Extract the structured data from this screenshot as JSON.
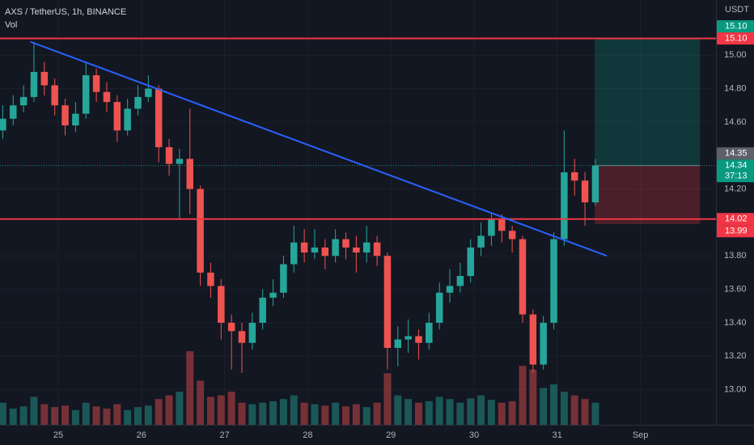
{
  "chart_data": {
    "type": "candlestick",
    "title": "AXS / TetherUS, 1h, BINANCE",
    "subtitle": "Vol",
    "y_axis_label": "USDT",
    "background": "#131722",
    "up_color": "#26a69a",
    "down_color": "#ef5350",
    "grid": true,
    "x": [
      8,
      11,
      14,
      17,
      20,
      23,
      26,
      29,
      32,
      35,
      38,
      41,
      44,
      47,
      50,
      53,
      56,
      59,
      62,
      65,
      68,
      71,
      74,
      77,
      80,
      83,
      86,
      89,
      92,
      95,
      98,
      101,
      104,
      107,
      110,
      113,
      116,
      119,
      122,
      125,
      128,
      131,
      134,
      137,
      140,
      143,
      146,
      149,
      152,
      155,
      158,
      161,
      164,
      167,
      170,
      173,
      176,
      179
    ],
    "open": [
      14.55,
      14.62,
      14.7,
      14.75,
      14.9,
      14.82,
      14.7,
      14.58,
      14.65,
      14.88,
      14.78,
      14.72,
      14.55,
      14.68,
      14.75,
      14.8,
      14.45,
      14.35,
      14.38,
      14.2,
      13.7,
      13.62,
      13.4,
      13.35,
      13.28,
      13.4,
      13.55,
      13.58,
      13.75,
      13.88,
      13.82,
      13.85,
      13.8,
      13.9,
      13.85,
      13.82,
      13.88,
      13.8,
      13.25,
      13.3,
      13.32,
      13.28,
      13.4,
      13.58,
      13.62,
      13.68,
      13.85,
      13.92,
      14.02,
      13.95,
      13.9,
      13.45,
      13.15,
      13.4,
      13.9,
      14.3,
      14.25,
      14.12
    ],
    "high": [
      14.7,
      14.76,
      14.82,
      15.08,
      14.96,
      14.86,
      14.74,
      14.72,
      14.96,
      14.92,
      14.84,
      14.76,
      14.74,
      14.82,
      14.88,
      14.82,
      14.5,
      14.44,
      14.68,
      14.22,
      13.76,
      13.66,
      13.45,
      13.4,
      13.46,
      13.6,
      13.66,
      13.8,
      13.98,
      13.96,
      13.96,
      13.9,
      13.96,
      13.94,
      13.92,
      13.98,
      13.92,
      13.82,
      13.38,
      13.42,
      13.36,
      13.46,
      13.64,
      13.72,
      13.76,
      13.9,
      14.0,
      14.06,
      14.05,
      13.98,
      13.92,
      13.48,
      13.44,
      13.94,
      14.55,
      14.38,
      14.3,
      14.38
    ],
    "low": [
      14.5,
      14.58,
      14.66,
      14.72,
      14.76,
      14.64,
      14.52,
      14.54,
      14.62,
      14.72,
      14.66,
      14.48,
      14.52,
      14.64,
      14.72,
      14.36,
      14.28,
      14.02,
      14.05,
      13.62,
      13.55,
      13.3,
      13.12,
      13.1,
      13.24,
      13.36,
      13.5,
      13.55,
      13.7,
      13.76,
      13.78,
      13.72,
      13.76,
      13.78,
      13.7,
      13.76,
      13.74,
      13.12,
      13.14,
      13.22,
      13.18,
      13.24,
      13.36,
      13.52,
      13.58,
      13.64,
      13.8,
      13.86,
      13.88,
      13.82,
      13.4,
      13.1,
      13.12,
      13.36,
      13.86,
      14.16,
      13.98,
      14.1
    ],
    "close": [
      14.62,
      14.7,
      14.75,
      14.9,
      14.82,
      14.7,
      14.58,
      14.65,
      14.88,
      14.78,
      14.72,
      14.55,
      14.68,
      14.75,
      14.8,
      14.45,
      14.35,
      14.38,
      14.2,
      13.7,
      13.62,
      13.4,
      13.35,
      13.28,
      13.4,
      13.55,
      13.58,
      13.75,
      13.88,
      13.82,
      13.85,
      13.8,
      13.9,
      13.85,
      13.82,
      13.88,
      13.8,
      13.25,
      13.3,
      13.32,
      13.28,
      13.4,
      13.58,
      13.62,
      13.68,
      13.85,
      13.92,
      14.02,
      13.95,
      13.9,
      13.45,
      13.15,
      13.4,
      13.9,
      14.3,
      14.25,
      14.12,
      14.34
    ],
    "volume": [
      30,
      22,
      25,
      38,
      28,
      24,
      26,
      20,
      30,
      25,
      22,
      28,
      20,
      24,
      26,
      35,
      40,
      45,
      100,
      60,
      38,
      40,
      45,
      30,
      28,
      30,
      32,
      35,
      40,
      30,
      28,
      26,
      30,
      25,
      28,
      24,
      30,
      70,
      40,
      35,
      30,
      32,
      38,
      35,
      30,
      36,
      40,
      34,
      30,
      32,
      80,
      75,
      50,
      55,
      45,
      40,
      35,
      30
    ],
    "volume_lim": [
      0,
      110
    ],
    "xlim": [
      7.2,
      213.8
    ],
    "xticks": [
      {
        "value": 24,
        "label": "25"
      },
      {
        "value": 48,
        "label": "26"
      },
      {
        "value": 72,
        "label": "27"
      },
      {
        "value": 96,
        "label": "28"
      },
      {
        "value": 120,
        "label": "29"
      },
      {
        "value": 144,
        "label": "30"
      },
      {
        "value": 168,
        "label": "31"
      },
      {
        "value": 192,
        "label": "Sep"
      }
    ],
    "ylim": [
      12.79,
      15.33
    ],
    "yticks": [
      {
        "value": 15,
        "label": "15.00"
      },
      {
        "value": 14.8,
        "label": "14.80"
      },
      {
        "value": 14.6,
        "label": "14.60"
      },
      {
        "value": 14.2,
        "label": "14.20"
      },
      {
        "value": 13.8,
        "label": "13.80"
      },
      {
        "value": 13.6,
        "label": "13.60"
      },
      {
        "value": 13.4,
        "label": "13.40"
      },
      {
        "value": 13.2,
        "label": "13.20"
      },
      {
        "value": 13,
        "label": "13.00"
      }
    ],
    "hlines": [
      {
        "value": 15.1,
        "color": "#f23645"
      },
      {
        "value": 14.02,
        "color": "#f23645"
      }
    ],
    "trendline": {
      "x": [
        16,
        182.3
      ],
      "y": [
        15.08,
        13.8
      ],
      "color": "#2962ff"
    },
    "position": {
      "x": [
        178.8,
        209.2
      ],
      "entry": 14.34,
      "target": 15.1,
      "stop": 13.99,
      "profit_color": "rgba(8,153,129,0.25)",
      "loss_color": "rgba(242,54,69,0.25)"
    },
    "price_labels": [
      {
        "value": 15.1,
        "label": "15.10",
        "color": "#f23645"
      },
      {
        "value": 15.1,
        "label": "15.10",
        "color": "#089981"
      },
      {
        "value": 14.34,
        "label": "14.34",
        "color": "#089981",
        "countdown": "37:13"
      },
      {
        "value": 14.35,
        "label": "14.35",
        "color": "#5d606b"
      },
      {
        "value": 14.02,
        "label": "14.02",
        "color": "#f23645"
      },
      {
        "value": 13.99,
        "label": "13.99",
        "color": "#f23645"
      }
    ]
  }
}
